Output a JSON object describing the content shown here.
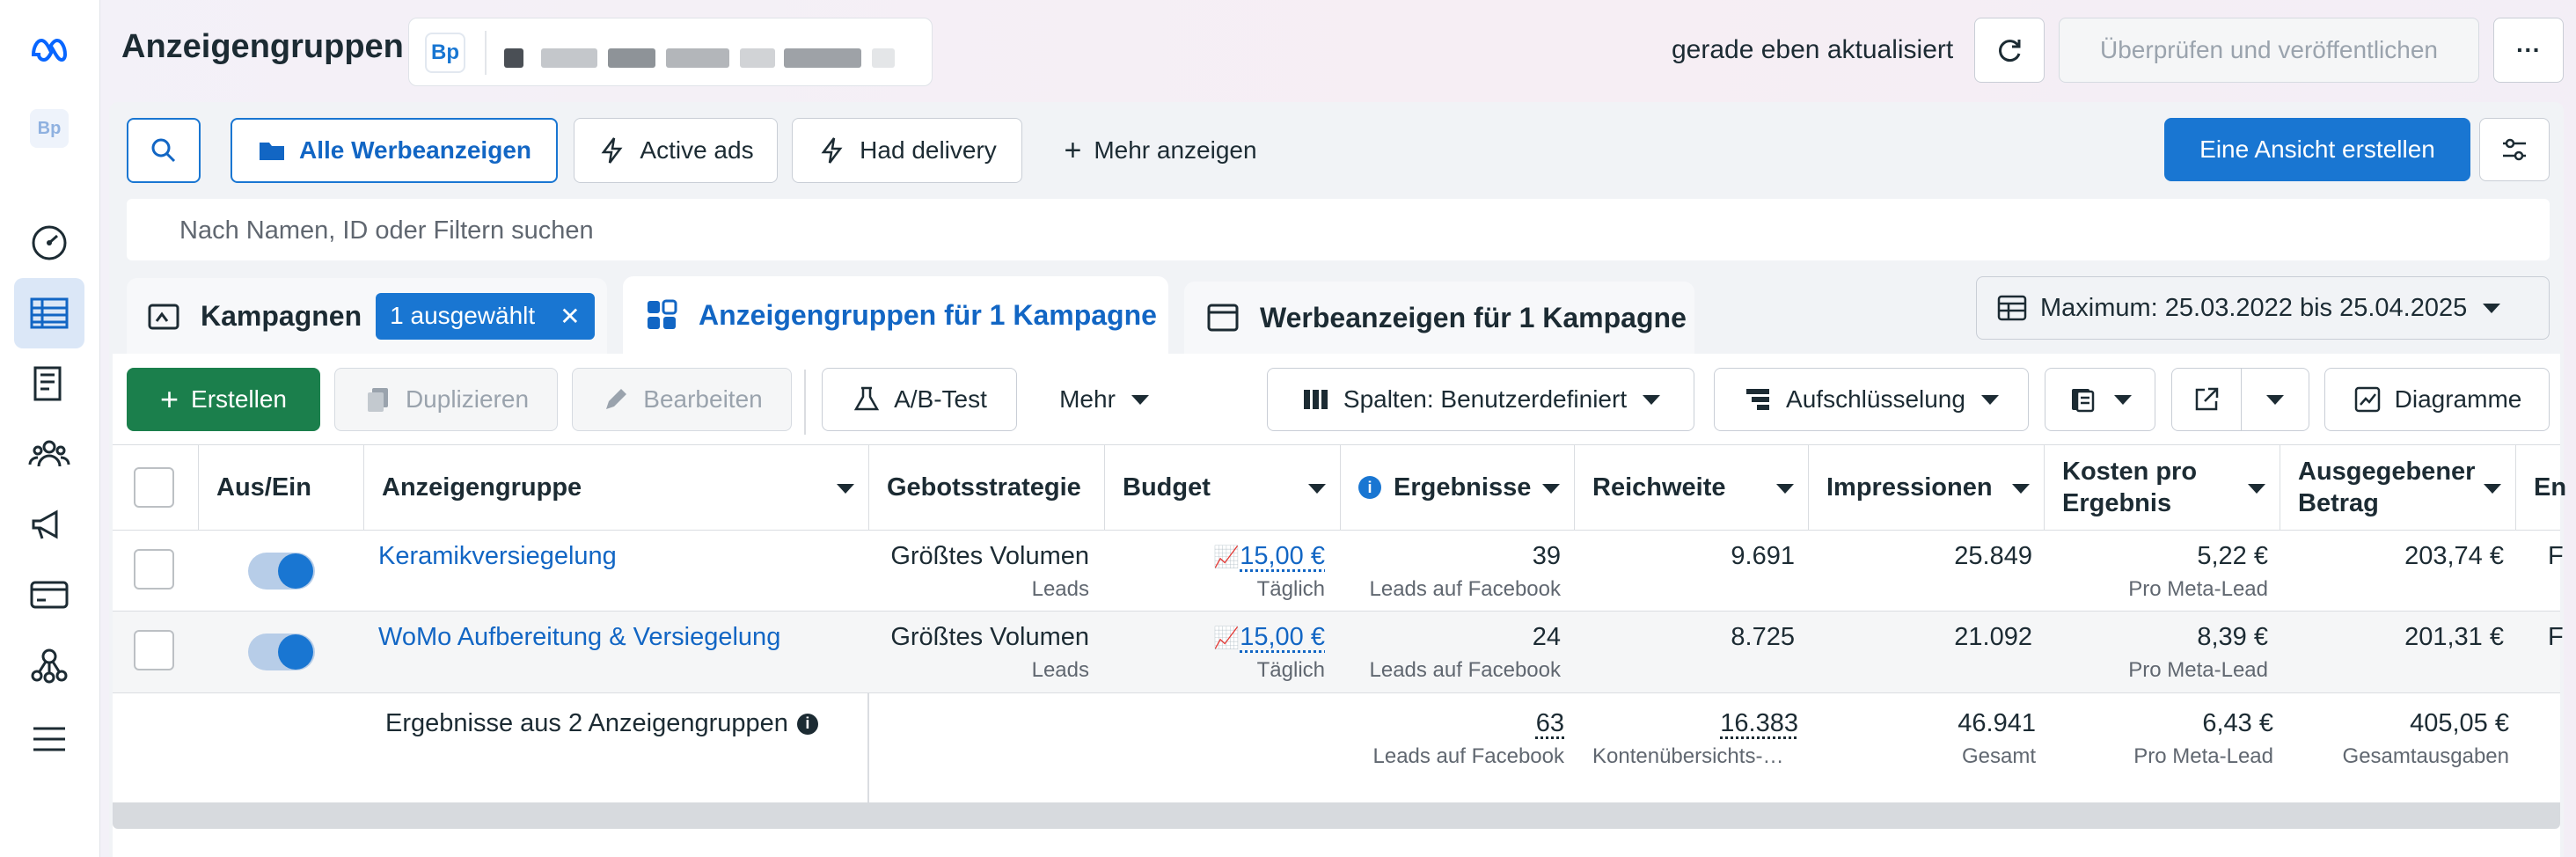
{
  "header": {
    "title": "Anzeigengruppen",
    "account_logo": "Bp",
    "updated": "gerade eben aktualisiert",
    "publish_label": "Überprüfen und veröffentlichen",
    "more_icon": "···"
  },
  "toolbar": {
    "views": [
      "Alle Werbeanzeigen",
      "Active ads",
      "Had delivery",
      "Mehr anzeigen"
    ],
    "create_view_label": "Eine Ansicht erstellen"
  },
  "search": {
    "placeholder": "Nach Namen, ID oder Filtern suchen"
  },
  "tabs": {
    "campaigns": "Kampagnen",
    "selected_chip": "1 ausgewählt",
    "adsets": "Anzeigengruppen für 1 Kampagne",
    "ads": "Werbeanzeigen für 1 Kampagne"
  },
  "date_range": "Maximum: 25.03.2022 bis 25.04.2025",
  "actions": {
    "create": "Erstellen",
    "duplicate": "Duplizieren",
    "edit": "Bearbeiten",
    "ab_test": "A/B-Test",
    "more": "Mehr",
    "columns": "Spalten: Benutzerdefiniert",
    "breakdown": "Aufschlüsselung",
    "charts": "Diagramme"
  },
  "table": {
    "headers": {
      "toggle": "Aus/Ein",
      "name": "Anzeigengruppe",
      "bid": "Gebotsstrategie",
      "budget": "Budget",
      "results": "Ergebnisse",
      "reach": "Reichweite",
      "impressions": "Impressionen",
      "cpr_1": "Kosten pro",
      "cpr_2": "Ergebnis",
      "spent_1": "Ausgegebener",
      "spent_2": "Betrag",
      "end": "En"
    },
    "rows": [
      {
        "name": "Keramikversiegelung",
        "bid": "Größtes Volumen",
        "bid_sub": "Leads",
        "budget": "15,00 €",
        "budget_sub": "Täglich",
        "results": "39",
        "results_sub": "Leads auf Facebook",
        "reach": "9.691",
        "impressions": "25.849",
        "cpr": "5,22 €",
        "cpr_sub": "Pro Meta-Lead",
        "spent": "203,74 €",
        "end": "F"
      },
      {
        "name": "WoMo Aufbereitung & Versiegelung",
        "bid": "Größtes Volumen",
        "bid_sub": "Leads",
        "budget": "15,00 €",
        "budget_sub": "Täglich",
        "results": "24",
        "results_sub": "Leads auf Facebook",
        "reach": "8.725",
        "impressions": "21.092",
        "cpr": "8,39 €",
        "cpr_sub": "Pro Meta-Lead",
        "spent": "201,31 €",
        "end": "F"
      }
    ],
    "summary": {
      "label": "Ergebnisse aus 2 Anzeigengruppen",
      "results": "63",
      "results_sub": "Leads auf Facebook",
      "reach": "16.383",
      "reach_sub": "Kontenübersichts-…",
      "impressions": "46.941",
      "impressions_sub": "Gesamt",
      "cpr": "6,43 €",
      "cpr_sub": "Pro Meta-Lead",
      "spent": "405,05 €",
      "spent_sub": "Gesamtausgaben"
    }
  },
  "colors": {
    "accent": "#1976d2",
    "create_green": "#1b7f4c"
  }
}
